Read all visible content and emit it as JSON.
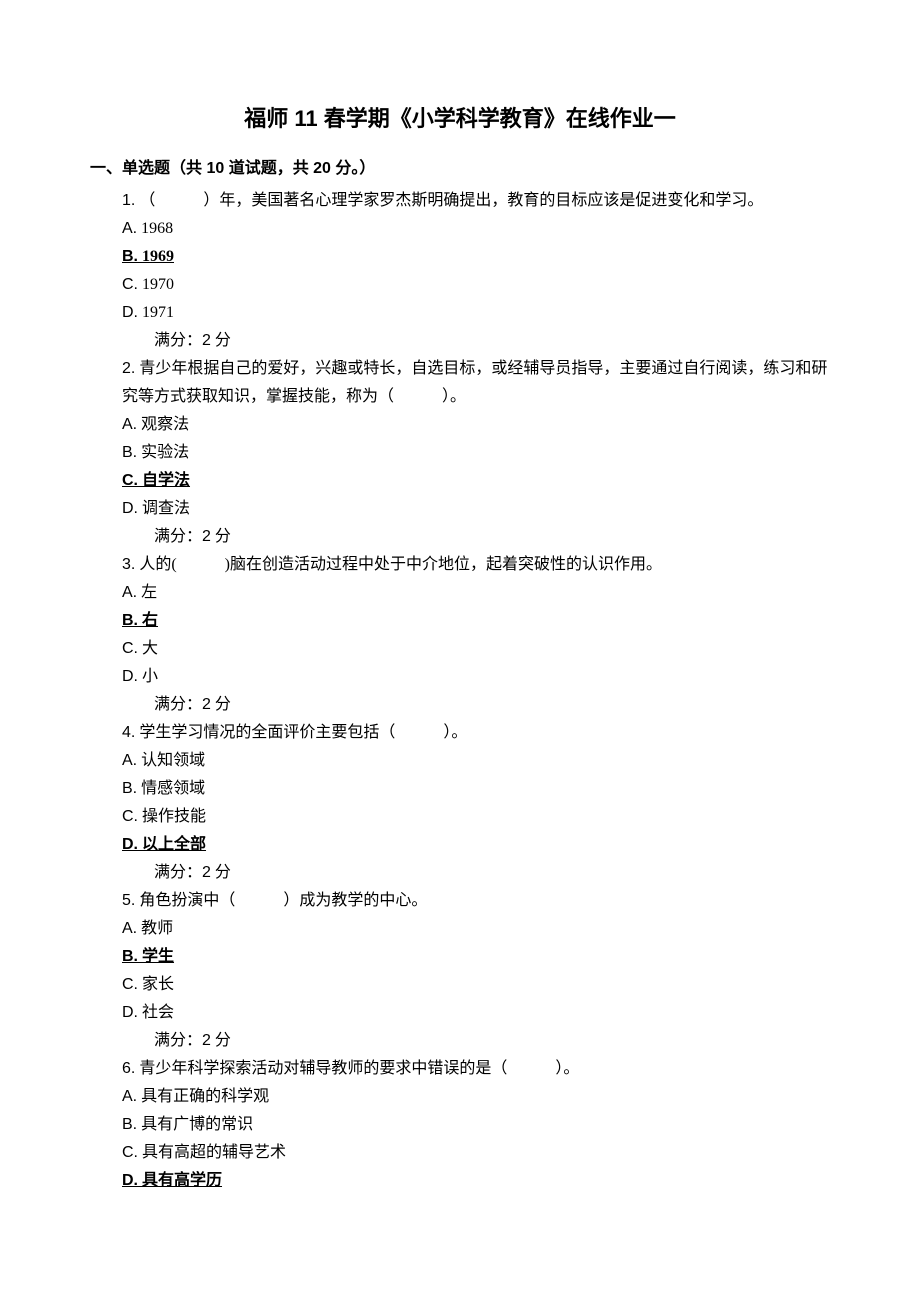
{
  "document": {
    "title": "福师 11 春学期《小学科学教育》在线作业一",
    "section_header": "一、单选题（共 10 道试题，共 20 分。）",
    "score_label_prefix": "满分：",
    "score_value": "2",
    "score_label_suffix": " 分",
    "questions": [
      {
        "num": "1.",
        "text_before": " （　　　）年，美国著名心理学家罗杰斯明确提出，教育的目标应该是促进变化和学习。",
        "options": [
          {
            "letter": "A.",
            "text": " 1968",
            "correct": false
          },
          {
            "letter": "B.",
            "text": " 1969",
            "correct": true
          },
          {
            "letter": "C.",
            "text": " 1970",
            "correct": false
          },
          {
            "letter": "D.",
            "text": " 1971",
            "correct": false
          }
        ]
      },
      {
        "num": "2.",
        "text_before": " 青少年根据自己的爱好，兴趣或特长，自选目标，或经辅导员指导，主要通过自行阅读，练习和研究等方式获取知识，掌握技能，称为（　　　）。",
        "options": [
          {
            "letter": "A.",
            "text": " 观察法",
            "correct": false
          },
          {
            "letter": "B.",
            "text": " 实验法",
            "correct": false
          },
          {
            "letter": "C.",
            "text": " 自学法",
            "correct": true
          },
          {
            "letter": "D.",
            "text": " 调查法",
            "correct": false
          }
        ]
      },
      {
        "num": "3.",
        "text_before": " 人的(　　　)脑在创造活动过程中处于中介地位，起着突破性的认识作用。",
        "options": [
          {
            "letter": "A.",
            "text": " 左",
            "correct": false
          },
          {
            "letter": "B.",
            "text": " 右",
            "correct": true
          },
          {
            "letter": "C.",
            "text": " 大",
            "correct": false
          },
          {
            "letter": "D.",
            "text": " 小",
            "correct": false
          }
        ]
      },
      {
        "num": "4.",
        "text_before": " 学生学习情况的全面评价主要包括（　　　）。",
        "options": [
          {
            "letter": "A.",
            "text": " 认知领域",
            "correct": false
          },
          {
            "letter": "B.",
            "text": " 情感领域",
            "correct": false
          },
          {
            "letter": "C.",
            "text": " 操作技能",
            "correct": false
          },
          {
            "letter": "D.",
            "text": " 以上全部",
            "correct": true
          }
        ]
      },
      {
        "num": "5.",
        "text_before": " 角色扮演中（　　　）成为教学的中心。",
        "options": [
          {
            "letter": "A.",
            "text": " 教师",
            "correct": false
          },
          {
            "letter": "B.",
            "text": " 学生",
            "correct": true
          },
          {
            "letter": "C.",
            "text": " 家长",
            "correct": false
          },
          {
            "letter": "D.",
            "text": " 社会",
            "correct": false
          }
        ]
      },
      {
        "num": "6.",
        "text_before": " 青少年科学探索活动对辅导教师的要求中错误的是（　　　）。",
        "options": [
          {
            "letter": "A.",
            "text": " 具有正确的科学观",
            "correct": false
          },
          {
            "letter": "B.",
            "text": " 具有广博的常识",
            "correct": false
          },
          {
            "letter": "C.",
            "text": " 具有高超的辅导艺术",
            "correct": false
          },
          {
            "letter": "D.",
            "text": " 具有高学历",
            "correct": true
          }
        ]
      }
    ]
  }
}
